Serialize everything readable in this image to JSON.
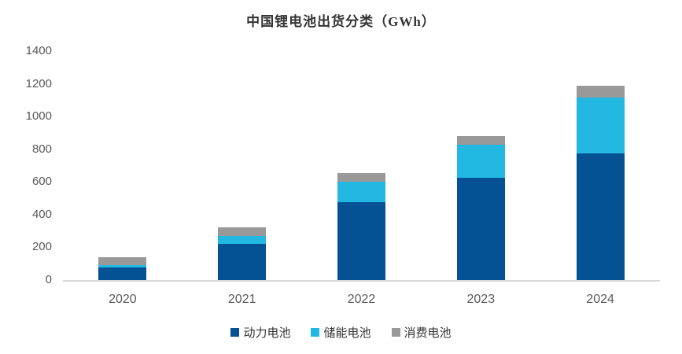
{
  "chart_data": {
    "type": "bar",
    "stacked": true,
    "title": "中国锂电池出货分类（GWh）",
    "categories": [
      "2020",
      "2021",
      "2022",
      "2023",
      "2024"
    ],
    "series": [
      {
        "key": "power-battery",
        "name": "动力电池",
        "color": "#045194",
        "values": [
          80,
          226,
          480,
          630,
          780
        ]
      },
      {
        "key": "storage-battery",
        "name": "储能电池",
        "color": "#23b8e1",
        "values": [
          18,
          48,
          128,
          200,
          340
        ]
      },
      {
        "key": "consumer-battery",
        "name": "消费电池",
        "color": "#999999",
        "values": [
          45,
          52,
          52,
          55,
          72
        ]
      }
    ],
    "totals": [
      143,
      326,
      660,
      885,
      1192
    ],
    "xlabel": "",
    "ylabel": "",
    "ylim": [
      0,
      1400
    ],
    "yticks": [
      0,
      200,
      400,
      600,
      800,
      1000,
      1200,
      1400
    ],
    "grid": false,
    "legend_position": "bottom",
    "axis_line_color": "#d9d9d9",
    "tick_label_color": "#595959",
    "title_color": "#333333"
  }
}
